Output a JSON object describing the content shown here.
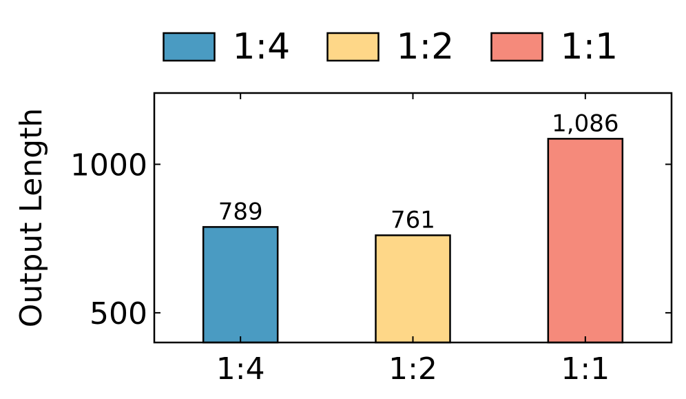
{
  "chart_data": {
    "type": "bar",
    "categories": [
      "1:4",
      "1:2",
      "1:1"
    ],
    "values": [
      789,
      761,
      1086
    ],
    "value_labels": [
      "789",
      "761",
      "1,086"
    ],
    "colors": [
      "#4a9bc2",
      "#fed788",
      "#f58a7b"
    ],
    "title": "",
    "xlabel": "",
    "ylabel": "Output Length",
    "ylim": [
      400,
      1240
    ],
    "yticks": [
      500,
      1000
    ],
    "ytick_labels": [
      "500",
      "1000"
    ],
    "legend": {
      "placement": "top-center",
      "entries": [
        "1:4",
        "1:2",
        "1:1"
      ]
    },
    "grid": false
  }
}
